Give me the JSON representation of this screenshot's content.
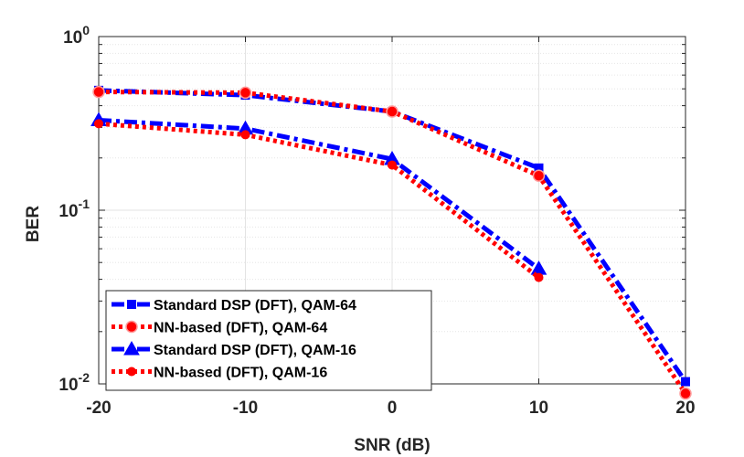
{
  "chart_data": {
    "type": "line",
    "xlabel": "SNR (dB)",
    "ylabel": "BER",
    "xscale": "linear",
    "yscale": "log",
    "xlim": [
      -20,
      20
    ],
    "ylim": [
      0.01,
      1
    ],
    "x_ticks": [
      "-20",
      "-10",
      "0",
      "10",
      "20"
    ],
    "y_ticks": [
      {
        "base": "10",
        "exp": "0"
      },
      {
        "base": "10",
        "exp": "-1"
      },
      {
        "base": "10",
        "exp": "-2"
      }
    ],
    "grid": true,
    "legend_position": "bottom-left",
    "series": [
      {
        "name": "Standard DSP (DFT), QAM-64",
        "color": "#0000ff",
        "line_style": "dash-dot",
        "marker": "square",
        "x": [
          -20,
          -10,
          0,
          10,
          20
        ],
        "y": [
          0.49,
          0.46,
          0.37,
          0.175,
          0.0103
        ]
      },
      {
        "name": "NN-based (DFT), QAM-64",
        "color": "#ff0000",
        "line_style": "dotted",
        "marker": "circle",
        "x": [
          -20,
          -10,
          0,
          10,
          20
        ],
        "y": [
          0.48,
          0.475,
          0.37,
          0.158,
          0.0088
        ]
      },
      {
        "name": "Standard DSP (DFT), QAM-16",
        "color": "#0000ff",
        "line_style": "dash-dot",
        "marker": "triangle",
        "x": [
          -20,
          -10,
          0,
          10
        ],
        "y": [
          0.33,
          0.295,
          0.197,
          0.046
        ]
      },
      {
        "name": "NN-based (DFT), QAM-16",
        "color": "#ff0000",
        "line_style": "dotted",
        "marker": "dot",
        "x": [
          -20,
          -10,
          0,
          10
        ],
        "y": [
          0.315,
          0.272,
          0.182,
          0.041
        ]
      }
    ]
  }
}
